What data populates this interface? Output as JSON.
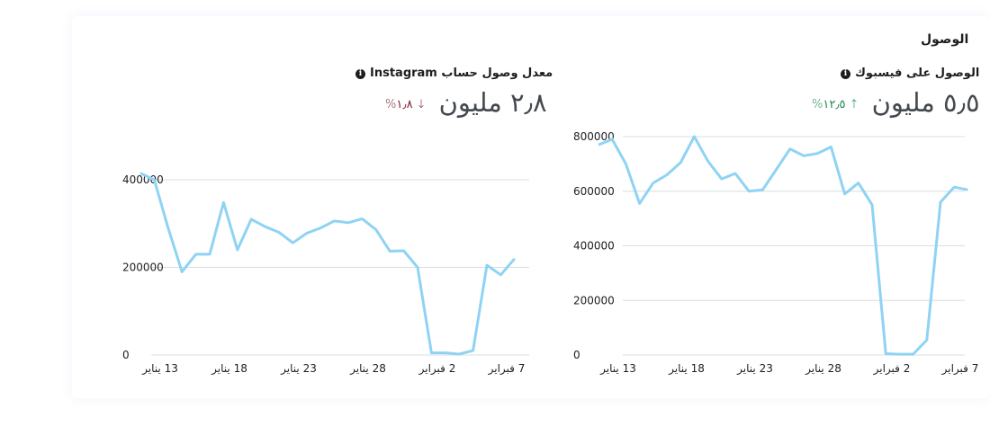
{
  "section_title": "الوصول",
  "charts": [
    {
      "title": "معدل وصول حساب Instagram",
      "metric": "٢٫٨ مليون",
      "delta": "↓ ١٫٨%",
      "delta_direction": "down",
      "info_icon": "info-icon"
    },
    {
      "title": "الوصول على فيسبوك",
      "metric": "٥٫٥ مليون",
      "delta": "↑ ١٢٫٥%",
      "delta_direction": "up",
      "info_icon": "info-icon"
    }
  ],
  "chart_data": [
    {
      "type": "line",
      "ylim": [
        0,
        400000
      ],
      "yticks": [
        0,
        200000,
        400000
      ],
      "ytick_labels": [
        "0",
        "200000",
        "400000"
      ],
      "xtick_labels": [
        "13 يناير",
        "18 يناير",
        "23 يناير",
        "28 يناير",
        "2 فبراير",
        "7 فبراير"
      ],
      "xtick_index": [
        0,
        5,
        10,
        15,
        20,
        25
      ],
      "grid": true,
      "color": "#8fd3f4",
      "values": [
        415000,
        400000,
        290000,
        190000,
        230000,
        230000,
        348000,
        240000,
        310000,
        293000,
        280000,
        256000,
        278000,
        290000,
        306000,
        302000,
        311000,
        286000,
        237000,
        238000,
        200000,
        5000,
        5000,
        2000,
        10000,
        205000,
        183000,
        220000
      ]
    },
    {
      "type": "line",
      "ylim": [
        0,
        800000
      ],
      "yticks": [
        0,
        200000,
        400000,
        600000,
        800000
      ],
      "ytick_labels": [
        "0",
        "200000",
        "400000",
        "600000",
        "800000"
      ],
      "xtick_labels": [
        "13 يناير",
        "18 يناير",
        "23 يناير",
        "28 يناير",
        "2 فبراير",
        "7 فبراير"
      ],
      "xtick_index": [
        0,
        5,
        10,
        15,
        20,
        25
      ],
      "grid": true,
      "color": "#8fd3f4",
      "values": [
        770000,
        790000,
        700000,
        555000,
        630000,
        660000,
        705000,
        800000,
        710000,
        645000,
        665000,
        600000,
        605000,
        680000,
        755000,
        730000,
        738000,
        762000,
        590000,
        630000,
        550000,
        5000,
        3000,
        3000,
        55000,
        560000,
        615000,
        605000
      ]
    }
  ]
}
